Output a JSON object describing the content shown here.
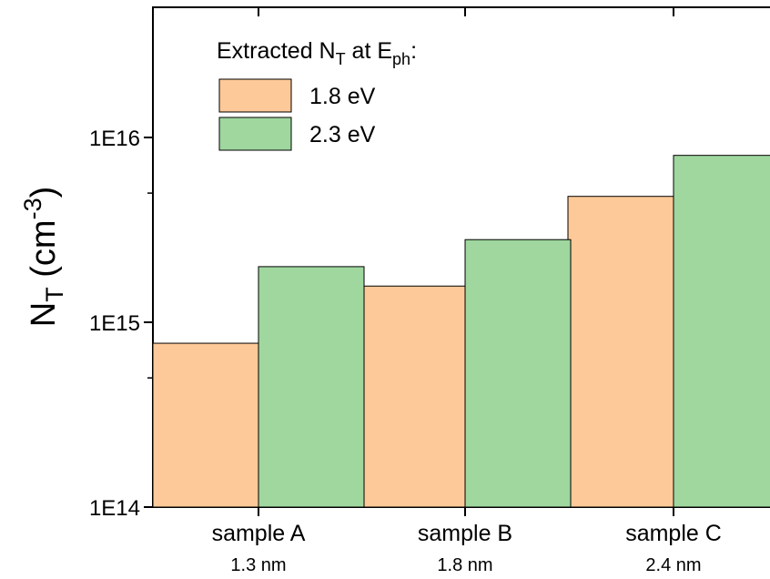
{
  "chart_data": {
    "type": "bar",
    "title": "",
    "xlabel": "",
    "ylabel": {
      "main": "N",
      "sub": "T",
      "unit_open": " (cm",
      "unit_sup": "-3",
      "unit_close": ")"
    },
    "yscale": "log",
    "ylim": [
      100000000000000.0,
      5e+16
    ],
    "yticks": [
      {
        "value": 100000000000000.0,
        "label": "1E14"
      },
      {
        "value": 1000000000000000.0,
        "label": "1E15"
      },
      {
        "value": 1e+16,
        "label": "1E16"
      }
    ],
    "categories": [
      {
        "label": "sample A",
        "sublabel": "1.3 nm"
      },
      {
        "label": "sample B",
        "sublabel": "1.8 nm"
      },
      {
        "label": "sample C",
        "sublabel": "2.4 nm"
      }
    ],
    "series": [
      {
        "name": "1.8 eV",
        "color": "#fdc998",
        "values": [
          770000000000000.0,
          1570000000000000.0,
          4800000000000000.0
        ]
      },
      {
        "name": "2.3 eV",
        "color": "#9fd79f",
        "values": [
          2000000000000000.0,
          2800000000000000.0,
          8000000000000000.0
        ]
      }
    ],
    "legend": {
      "title_parts": {
        "a": "Extracted N",
        "a_sub": "T",
        "b": " at E",
        "b_sub": "ph",
        "c": ":"
      },
      "position": "top-left"
    },
    "grid": false
  }
}
